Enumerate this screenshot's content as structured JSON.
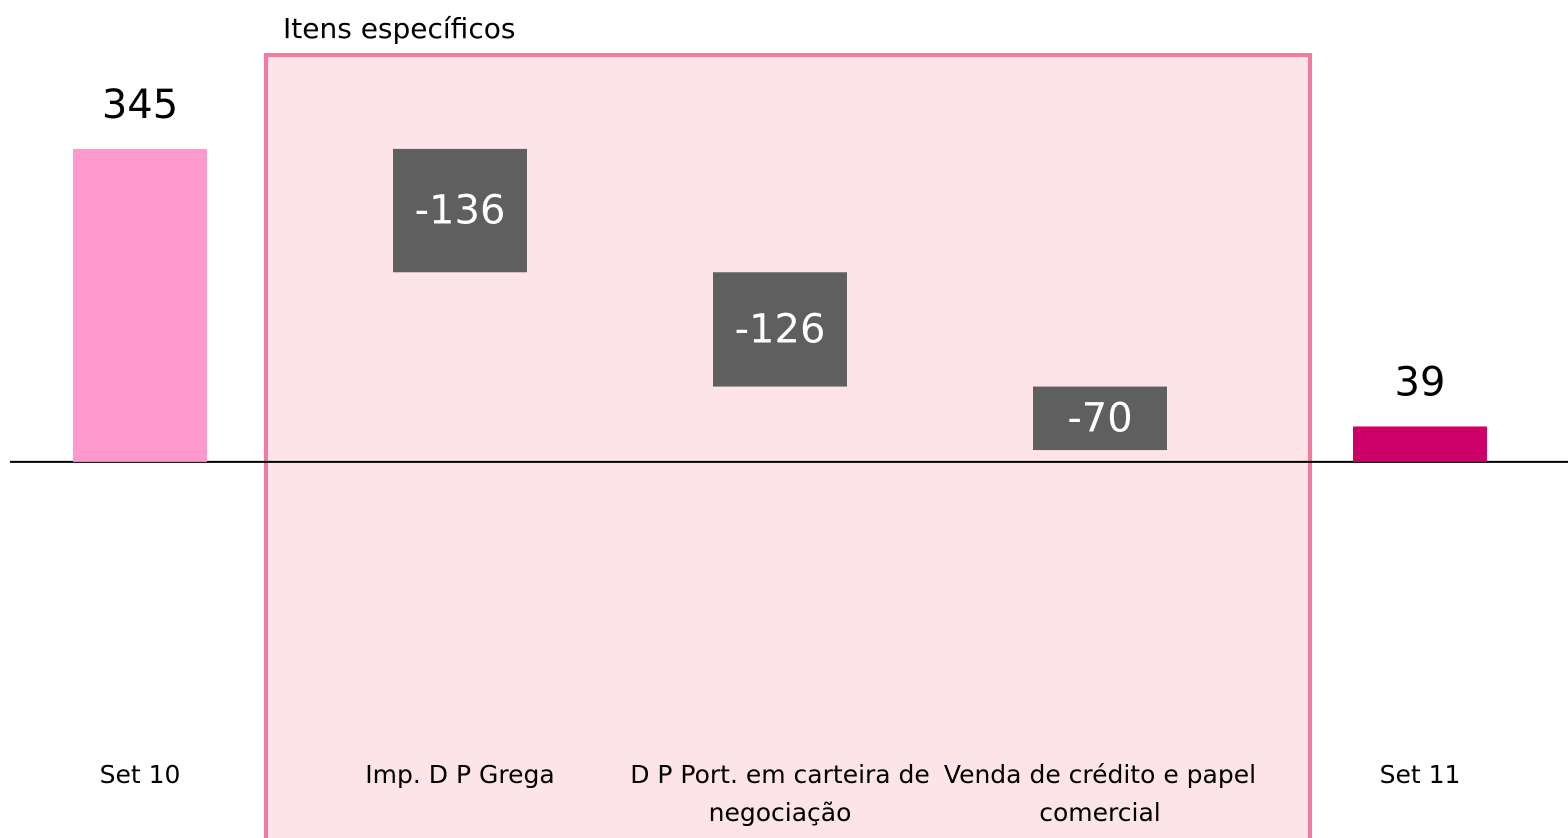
{
  "chart_data": {
    "type": "waterfall",
    "annotation": "Itens específicos",
    "categories": [
      "Set 10",
      "Imp. D P Grega",
      "D P Port. em carteira de negociação",
      "Venda de crédito e papel comercial",
      "Set 11"
    ],
    "values": [
      345,
      -136,
      -126,
      -70,
      39
    ],
    "measure": [
      "absolute",
      "relative",
      "relative",
      "relative",
      "absolute"
    ],
    "colors": [
      "#ff99cc",
      "#5f5f5f",
      "#5f5f5f",
      "#5f5f5f",
      "#cc0066"
    ],
    "ylim": [
      -300,
      400
    ]
  }
}
